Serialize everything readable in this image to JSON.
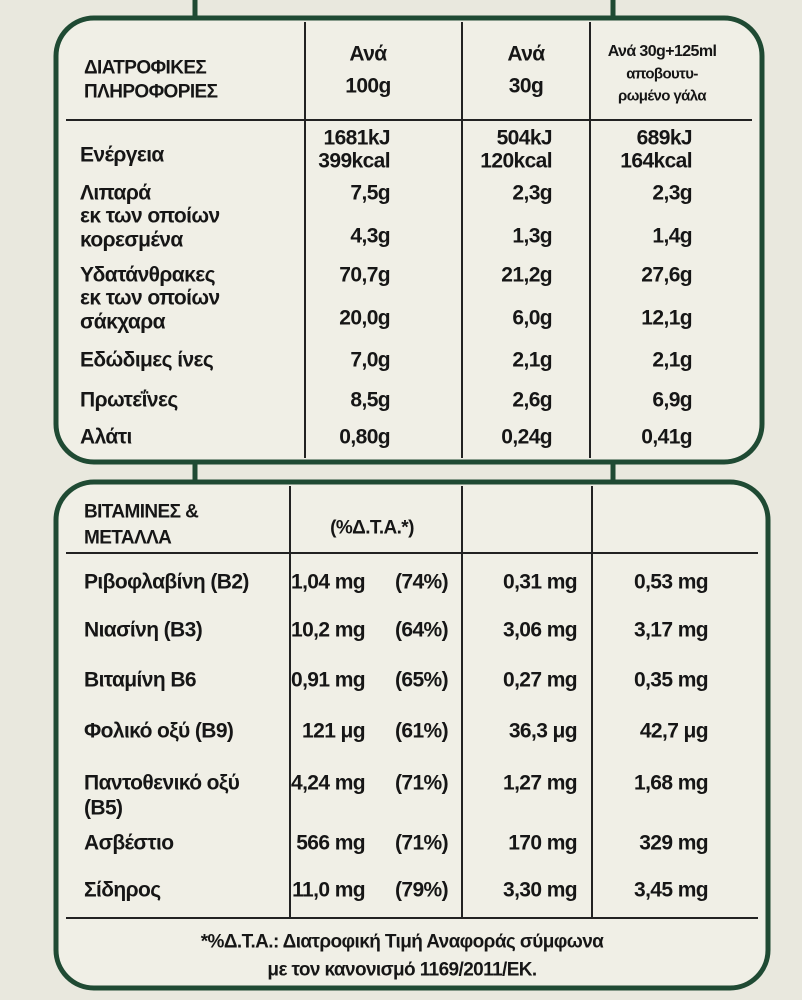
{
  "nutrition": {
    "header": [
      [
        "ΔΙΑΤΡΟΦΙΚΕΣ",
        "ΠΛΗΡΟΦΟΡΙΕΣ"
      ],
      [
        "Ανά",
        "100g"
      ],
      [
        "Ανά",
        "30g"
      ],
      [
        "Ανά 30g+125ml",
        "αποβουτυ-",
        "ρωμένο γάλα"
      ]
    ],
    "rows": [
      {
        "label": [
          "Ενέργεια"
        ],
        "values": [
          [
            "1681kJ",
            "399kcal"
          ],
          [
            "504kJ",
            "120kcal"
          ],
          [
            "689kJ",
            "164kcal"
          ]
        ]
      },
      {
        "label": [
          "Λιπαρά"
        ],
        "values": [
          [
            "7,5g"
          ],
          [
            "2,3g"
          ],
          [
            "2,3g"
          ]
        ]
      },
      {
        "label": [
          "εκ των οποίων",
          "κορεσμένα"
        ],
        "values": [
          [
            "4,3g"
          ],
          [
            "1,3g"
          ],
          [
            "1,4g"
          ]
        ]
      },
      {
        "label": [
          "Υδατάνθρακες"
        ],
        "values": [
          [
            "70,7g"
          ],
          [
            "21,2g"
          ],
          [
            "27,6g"
          ]
        ]
      },
      {
        "label": [
          "εκ των οποίων",
          "σάκχαρα"
        ],
        "values": [
          [
            "20,0g"
          ],
          [
            "6,0g"
          ],
          [
            "12,1g"
          ]
        ]
      },
      {
        "label": [
          "Εδώδιμες ίνες"
        ],
        "values": [
          [
            "7,0g"
          ],
          [
            "2,1g"
          ],
          [
            "2,1g"
          ]
        ]
      },
      {
        "label": [
          "Πρωτεΐνες"
        ],
        "values": [
          [
            "8,5g"
          ],
          [
            "2,6g"
          ],
          [
            "6,9g"
          ]
        ]
      },
      {
        "label": [
          "Αλάτι"
        ],
        "values": [
          [
            "0,80g"
          ],
          [
            "0,24g"
          ],
          [
            "0,41g"
          ]
        ]
      }
    ]
  },
  "vitamins": {
    "header": [
      [
        "ΒΙΤΑΜΙΝΕΣ &",
        "ΜΕΤΑΛΛΑ"
      ],
      [
        "(%Δ.Τ.Α.*)"
      ]
    ],
    "rows": [
      {
        "label": [
          "Ριβοφλαβίνη (Β2)"
        ],
        "values": [
          "1,04 mg",
          "(74%)",
          "0,31 mg",
          "0,53 mg"
        ]
      },
      {
        "label": [
          "Νιασίνη (Β3)"
        ],
        "values": [
          "10,2 mg",
          "(64%)",
          "3,06 mg",
          "3,17 mg"
        ]
      },
      {
        "label": [
          "Βιταμίνη Β6"
        ],
        "values": [
          "0,91 mg",
          "(65%)",
          "0,27 mg",
          "0,35 mg"
        ]
      },
      {
        "label": [
          "Φολικό οξύ (Β9)"
        ],
        "values": [
          "121 μg",
          "(61%)",
          "36,3 μg",
          "42,7 μg"
        ]
      },
      {
        "label": [
          "Παντοθενικό οξύ",
          "(Β5)"
        ],
        "values": [
          "4,24 mg",
          "(71%)",
          "1,27 mg",
          "1,68 mg"
        ]
      },
      {
        "label": [
          "Ασβέστιο"
        ],
        "values": [
          "566 mg",
          "(71%)",
          "170 mg",
          "329 mg"
        ]
      },
      {
        "label": [
          "Σίδηρος"
        ],
        "values": [
          "11,0 mg",
          "(79%)",
          "3,30 mg",
          "3,45 mg"
        ]
      }
    ],
    "footnote": [
      "*%Δ.Τ.Α.: Διατροφική Τιμή Αναφοράς σύμφωνα",
      "με τον κανονισμό 1169/2011/ΕΚ."
    ]
  }
}
